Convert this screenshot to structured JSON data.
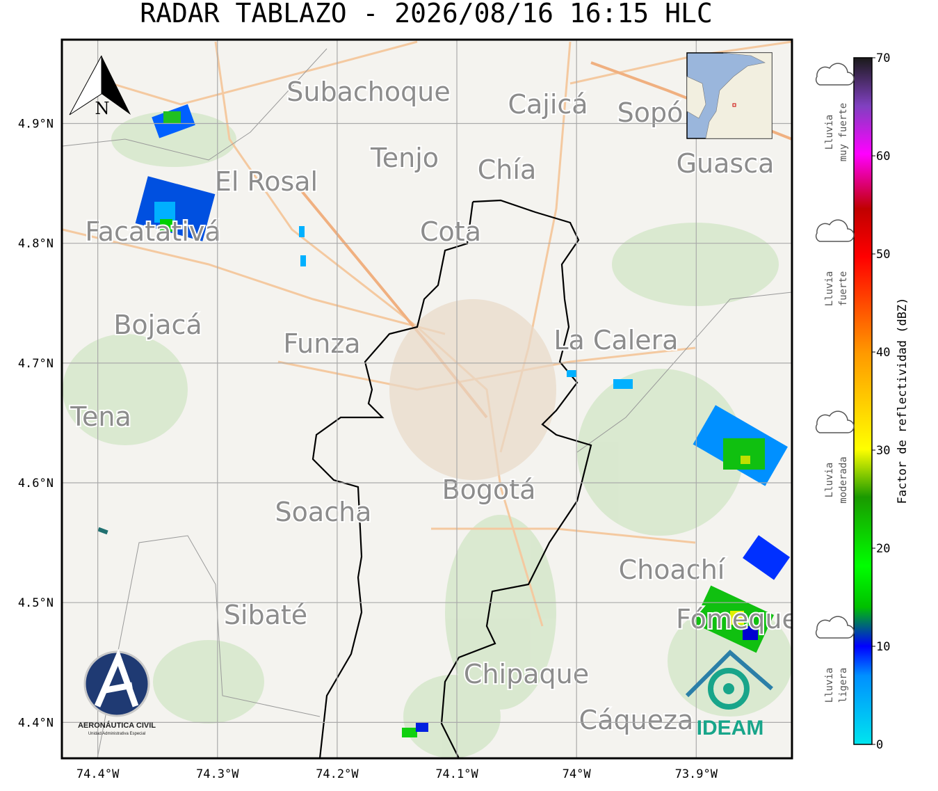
{
  "title": "RADAR TABLAZO - 2026/08/16 16:15 HLC",
  "map": {
    "lon_range": [
      -74.43,
      -73.82
    ],
    "lat_range": [
      4.37,
      4.97
    ],
    "lon_ticks": [
      {
        "value": -74.4,
        "label": "74.4°W"
      },
      {
        "value": -74.3,
        "label": "74.3°W"
      },
      {
        "value": -74.2,
        "label": "74.2°W"
      },
      {
        "value": -74.1,
        "label": "74.1°W"
      },
      {
        "value": -74.0,
        "label": "74°W"
      },
      {
        "value": -73.9,
        "label": "73.9°W"
      }
    ],
    "lat_ticks": [
      {
        "value": 4.9,
        "label": "4.9°N"
      },
      {
        "value": 4.8,
        "label": "4.8°N"
      },
      {
        "value": 4.7,
        "label": "4.7°N"
      },
      {
        "value": 4.6,
        "label": "4.6°N"
      },
      {
        "value": 4.5,
        "label": "4.5°N"
      },
      {
        "value": 4.4,
        "label": "4.4°N"
      }
    ],
    "places": [
      "Subachoque",
      "Cajicá",
      "Sopó",
      "Tenjo",
      "Chía",
      "Guasca",
      "El Rosal",
      "Facatativá",
      "Cota",
      "Bojacá",
      "Funza",
      "La Calera",
      "Tena",
      "Bogotá",
      "Soacha",
      "Choachí",
      "Sibaté",
      "Fómeque",
      "Chipaque",
      "Cáqueza"
    ],
    "north_label": "N"
  },
  "colorbar": {
    "range": [
      0,
      70
    ],
    "ticks": [
      0,
      10,
      20,
      30,
      40,
      50,
      60,
      70
    ],
    "label": "Factor de reflectividad (dBZ)"
  },
  "rain_categories": [
    [
      "Lluvia",
      "muy fuerte"
    ],
    [
      "Lluvia",
      "fuerte"
    ],
    [
      "Lluvia",
      "moderada"
    ],
    [
      "Lluvia",
      "ligera"
    ]
  ],
  "logos": {
    "aeronautica": "AERONÁUTICA CIVIL",
    "aeronautica_sub": "Unidad Administrativa Especial",
    "ideam": "IDEAM"
  }
}
